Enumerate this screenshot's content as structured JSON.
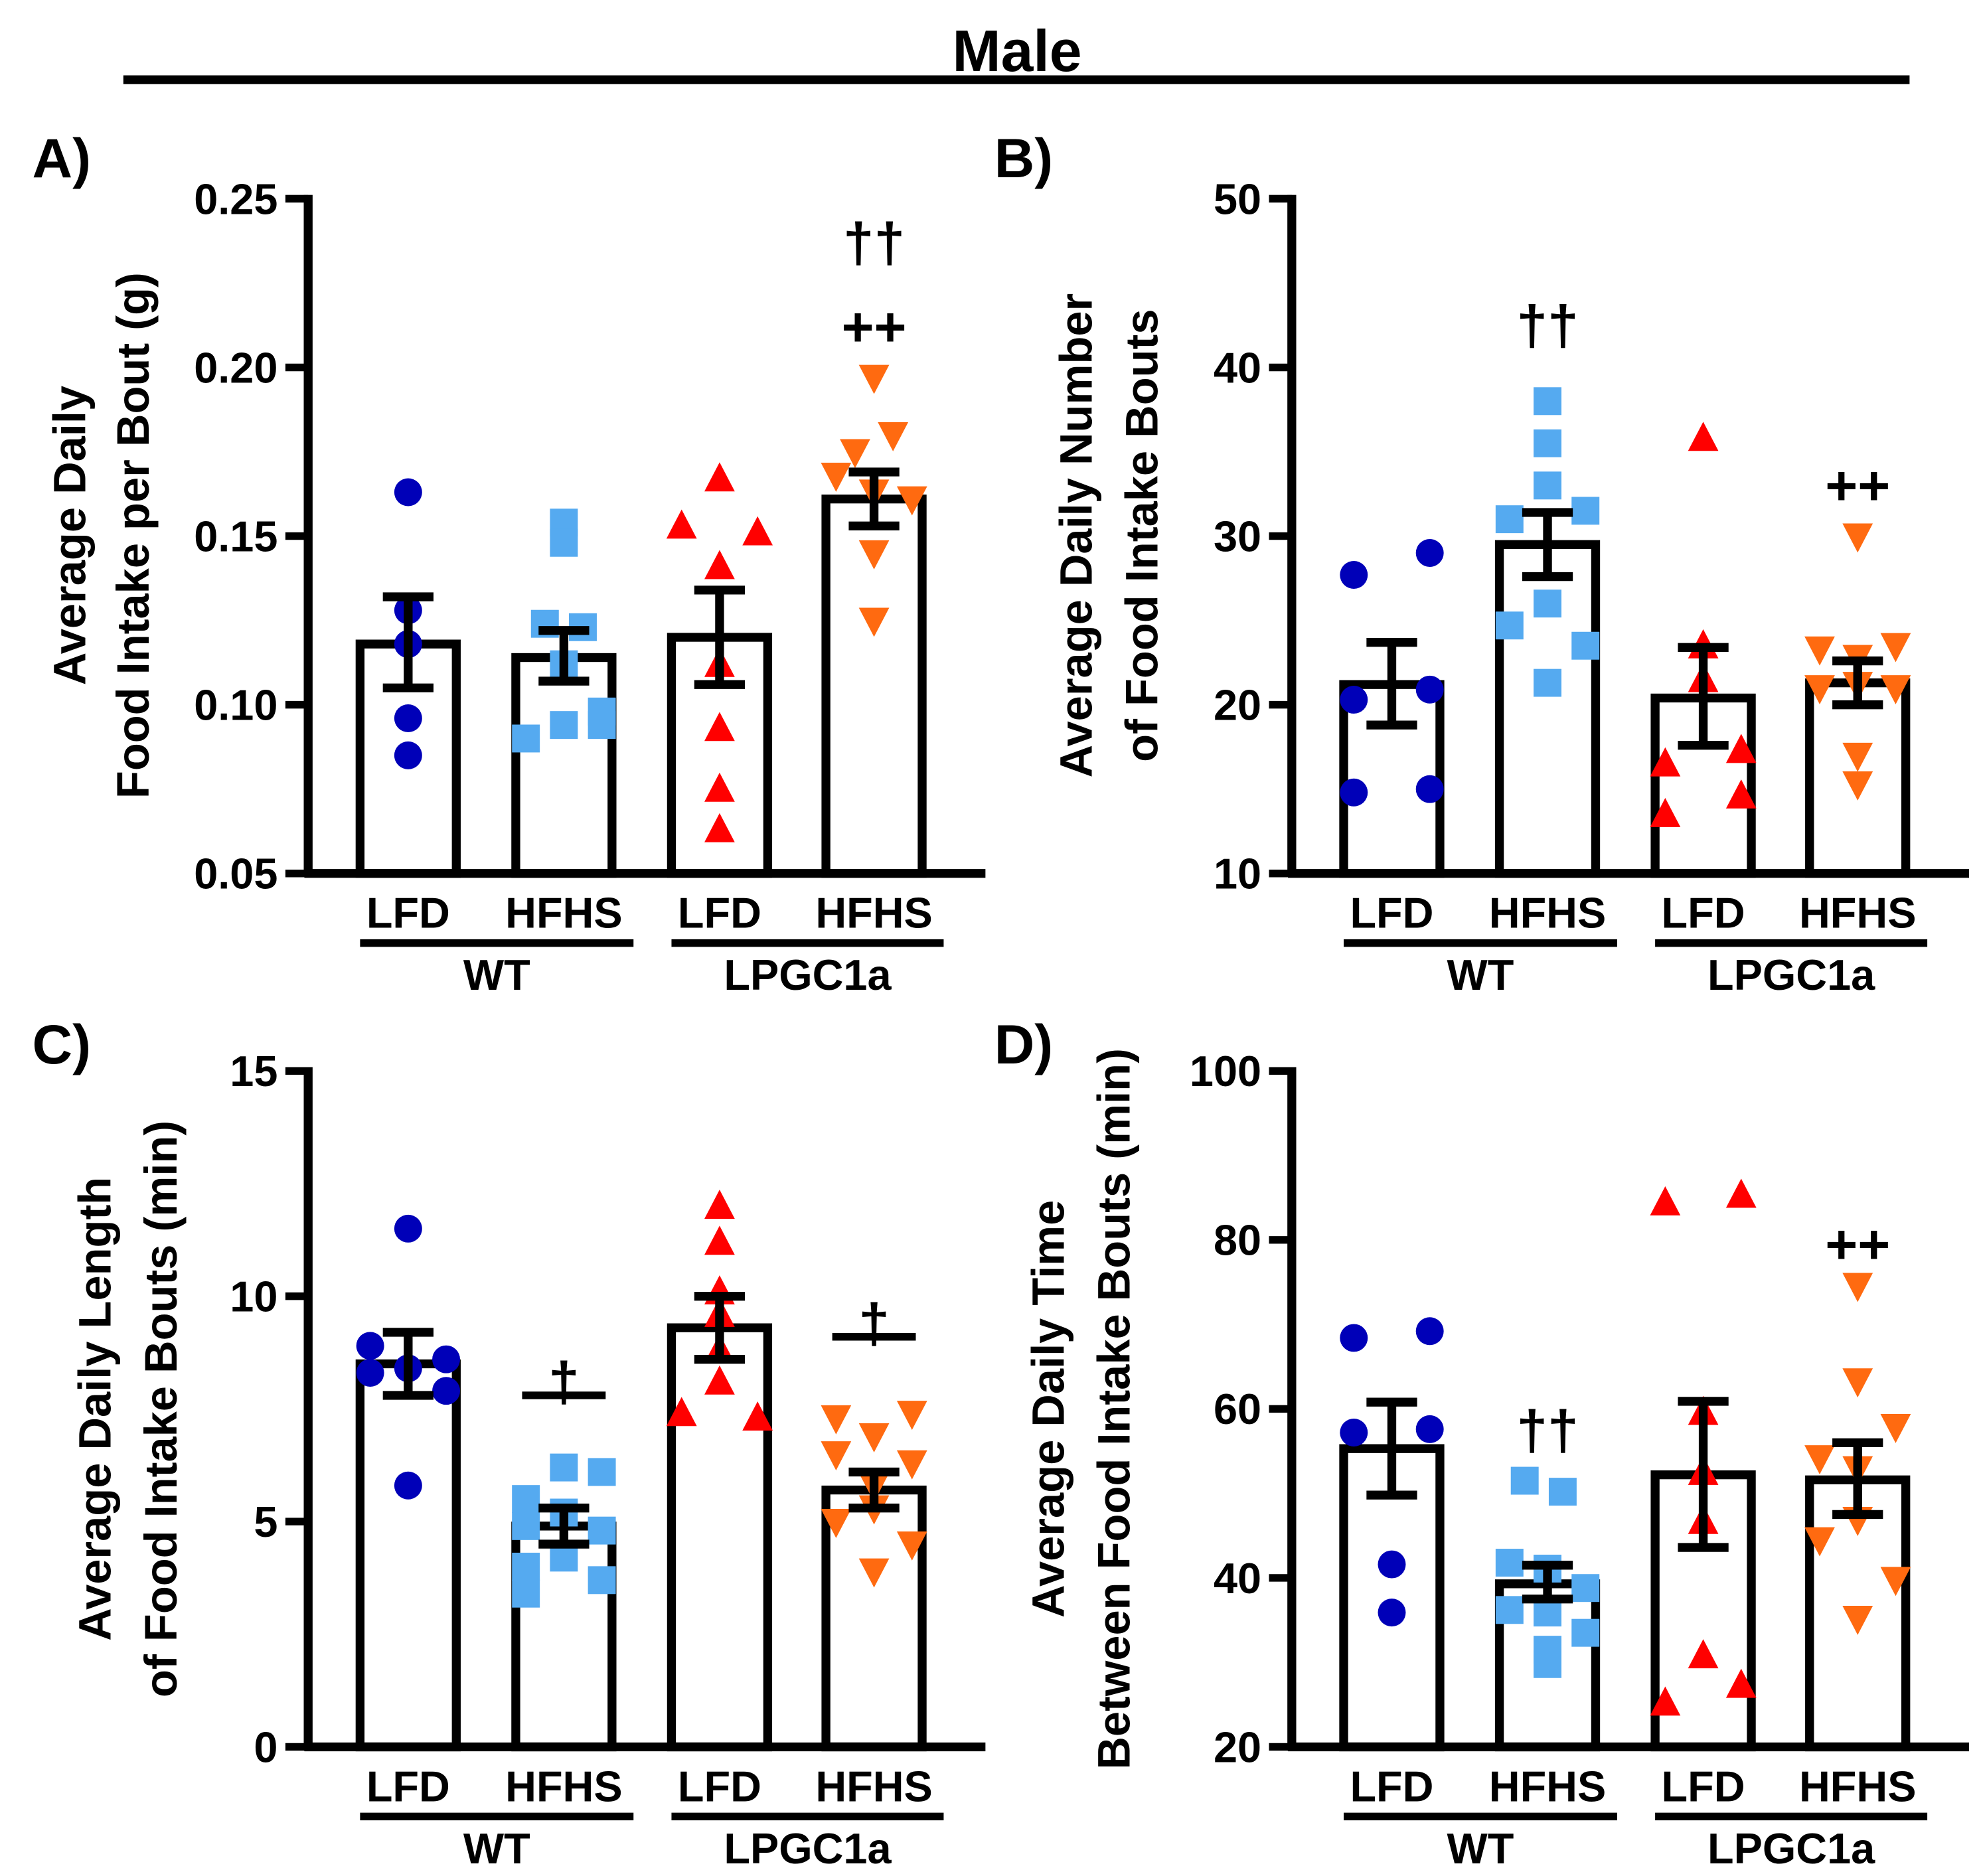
{
  "figure_title": "Male",
  "colors": {
    "wt_lfd": "#0000b8",
    "wt_hfhs": "#55aaf0",
    "lpgc_lfd": "#ff0000",
    "lpgc_hfhs": "#ff6a10"
  },
  "markers": {
    "wt_lfd": "circle",
    "wt_hfhs": "square",
    "lpgc_lfd": "triangle-up",
    "lpgc_hfhs": "triangle-down"
  },
  "chart_data": [
    {
      "panel_label": "A)",
      "type": "bar",
      "ylabel_lines": [
        "Average Daily",
        "Food Intake per Bout (g)"
      ],
      "ylim": [
        0.05,
        0.25
      ],
      "yticks": [
        "0.05",
        "0.10",
        "0.15",
        "0.20",
        "0.25"
      ],
      "categories": [
        "LFD",
        "HFHS",
        "LFD",
        "HFHS"
      ],
      "groups": [
        "WT",
        "LPGC1a"
      ],
      "means": [
        0.118,
        0.114,
        0.12,
        0.161
      ],
      "sem_low": [
        0.105,
        0.107,
        0.106,
        0.153
      ],
      "sem_high": [
        0.132,
        0.122,
        0.134,
        0.169
      ],
      "points": [
        [
          0.163,
          0.128,
          0.118,
          0.096,
          0.085
        ],
        [
          0.154,
          0.148,
          0.124,
          0.123,
          0.112,
          0.098,
          0.094,
          0.094,
          0.09
        ],
        [
          0.167,
          0.153,
          0.151,
          0.141,
          0.112,
          0.093,
          0.075,
          0.063
        ],
        [
          0.197,
          0.18,
          0.175,
          0.168,
          0.163,
          0.161,
          0.145,
          0.125
        ]
      ],
      "annotations": [
        {
          "bar": 3,
          "text": "††",
          "value": 0.237
        },
        {
          "bar": 3,
          "text": "++",
          "value": 0.212
        }
      ]
    },
    {
      "panel_label": "B)",
      "type": "bar",
      "ylabel_lines": [
        "Average Daily Number",
        "of Food Intake Bouts"
      ],
      "ylim": [
        10,
        50
      ],
      "yticks": [
        "10",
        "20",
        "30",
        "40",
        "50"
      ],
      "categories": [
        "LFD",
        "HFHS",
        "LFD",
        "HFHS"
      ],
      "groups": [
        "WT",
        "LPGC1a"
      ],
      "means": [
        21.2,
        29.5,
        20.4,
        21.3
      ],
      "sem_low": [
        18.8,
        27.6,
        17.6,
        20.0
      ],
      "sem_high": [
        23.7,
        31.4,
        23.4,
        22.6
      ],
      "points": [
        [
          27.7,
          29.0,
          20.3,
          20.9,
          14.8,
          15.0
        ],
        [
          38.0,
          35.5,
          33.0,
          31.0,
          31.5,
          26.0,
          24.7,
          23.5,
          21.3
        ],
        [
          35.8,
          23.5,
          21.5,
          16.5,
          17.3,
          14.6,
          13.5
        ],
        [
          30.0,
          23.3,
          23.5,
          22.8,
          21.0,
          21.0,
          21.2,
          17.0,
          15.3
        ]
      ],
      "annotations": [
        {
          "bar": 1,
          "text": "††",
          "value": 42.5
        },
        {
          "bar": 3,
          "text": "++",
          "value": 33.0
        }
      ]
    },
    {
      "panel_label": "C)",
      "type": "bar",
      "ylabel_lines": [
        "Average Daily Length",
        "of Food Intake Bouts (min)"
      ],
      "ylim": [
        0,
        15
      ],
      "yticks": [
        "0",
        "5",
        "10",
        "15"
      ],
      "categories": [
        "LFD",
        "HFHS",
        "LFD",
        "HFHS"
      ],
      "groups": [
        "WT",
        "LPGC1a"
      ],
      "means": [
        8.5,
        4.9,
        9.3,
        5.7
      ],
      "sem_low": [
        7.8,
        4.5,
        8.6,
        5.3
      ],
      "sem_high": [
        9.2,
        5.3,
        10.0,
        6.1
      ],
      "points": [
        [
          11.5,
          8.9,
          8.3,
          8.6,
          8.4,
          7.9,
          5.8
        ],
        [
          6.2,
          6.1,
          5.5,
          5.2,
          4.9,
          4.8,
          4.2,
          4.0,
          3.7,
          3.4
        ],
        [
          12.0,
          11.2,
          10.1,
          9.6,
          8.8,
          8.1,
          7.4,
          7.3
        ],
        [
          7.3,
          7.4,
          6.9,
          6.5,
          6.3,
          5.8,
          5.3,
          5.0,
          4.5,
          3.9
        ]
      ],
      "annotations": [
        {
          "bar": 1,
          "text": "†",
          "value": 8.1,
          "bracket": 7.8
        },
        {
          "bar": 3,
          "text": "†",
          "value": 9.4,
          "bracket": 9.1
        }
      ]
    },
    {
      "panel_label": "D)",
      "type": "bar",
      "ylabel_lines": [
        "Average Daily Time",
        "Between Food Intake Bouts (min)"
      ],
      "ylim": [
        20,
        100
      ],
      "yticks": [
        "20",
        "40",
        "60",
        "80",
        "100"
      ],
      "categories": [
        "LFD",
        "HFHS",
        "LFD",
        "HFHS"
      ],
      "groups": [
        "WT",
        "LPGC1a"
      ],
      "means": [
        55.3,
        39.3,
        52.2,
        51.6
      ],
      "sem_low": [
        49.8,
        37.5,
        43.6,
        47.5
      ],
      "sem_high": [
        60.8,
        41.5,
        60.9,
        56.0
      ],
      "points": [
        [
          68.4,
          69.2,
          57.2,
          57.6,
          41.6,
          35.9
        ],
        [
          51.5,
          50.2,
          41.8,
          41.1,
          38.8,
          36.2,
          35.9,
          33.5,
          31.5,
          29.8
        ],
        [
          84.4,
          85.3,
          59.6,
          52.5,
          46.7,
          30.8,
          27.3,
          25.2
        ],
        [
          74.6,
          63.3,
          57.9,
          54.2,
          52.9,
          46.9,
          44.5,
          39.8,
          35.2
        ]
      ],
      "annotations": [
        {
          "bar": 1,
          "text": "††",
          "value": 57.5
        },
        {
          "bar": 3,
          "text": "++",
          "value": 79.5
        }
      ]
    }
  ]
}
